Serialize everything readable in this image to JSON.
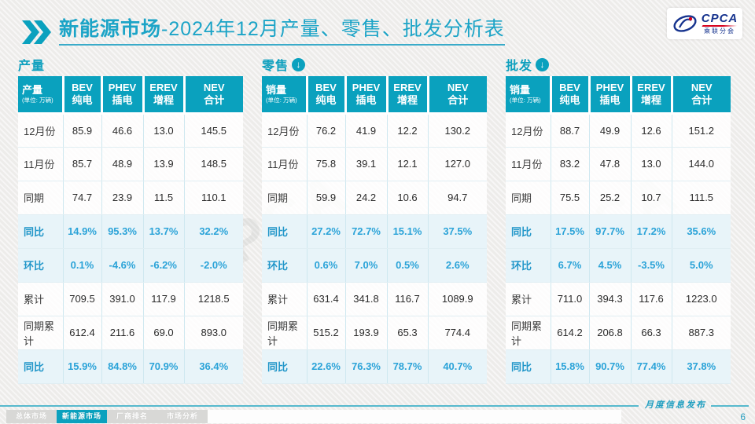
{
  "header": {
    "title_highlight": "新能源市场",
    "title_rest": "-2024年12月产量、零售、批发分析表",
    "logo": {
      "name": "CPCA",
      "subtitle": "乘联分会"
    }
  },
  "tables": [
    {
      "section_title": "产量",
      "has_arrow": false,
      "corner_label": "产量",
      "corner_unit": "(单位: 万辆)",
      "columns": [
        {
          "en": "BEV",
          "cn": "纯电"
        },
        {
          "en": "PHEV",
          "cn": "插电"
        },
        {
          "en": "EREV",
          "cn": "增程"
        },
        {
          "en": "NEV",
          "cn": "合计"
        }
      ],
      "rows": [
        {
          "label": "12月份",
          "type": "data",
          "values": [
            "85.9",
            "46.6",
            "13.0",
            "145.5"
          ]
        },
        {
          "label": "11月份",
          "type": "data",
          "values": [
            "85.7",
            "48.9",
            "13.9",
            "148.5"
          ]
        },
        {
          "label": "同期",
          "type": "data",
          "values": [
            "74.7",
            "23.9",
            "11.5",
            "110.1"
          ]
        },
        {
          "label": "同比",
          "type": "percent",
          "values": [
            "14.9%",
            "95.3%",
            "13.7%",
            "32.2%"
          ]
        },
        {
          "label": "环比",
          "type": "percent",
          "values": [
            "0.1%",
            "-4.6%",
            "-6.2%",
            "-2.0%"
          ]
        },
        {
          "label": "累计",
          "type": "data",
          "values": [
            "709.5",
            "391.0",
            "117.9",
            "1218.5"
          ]
        },
        {
          "label": "同期累计",
          "type": "data",
          "values": [
            "612.4",
            "211.6",
            "69.0",
            "893.0"
          ]
        },
        {
          "label": "同比",
          "type": "percent",
          "values": [
            "15.9%",
            "84.8%",
            "70.9%",
            "36.4%"
          ]
        }
      ]
    },
    {
      "section_title": "零售",
      "has_arrow": true,
      "arrow_glyph": "↓",
      "corner_label": "销量",
      "corner_unit": "(单位: 万辆)",
      "columns": [
        {
          "en": "BEV",
          "cn": "纯电"
        },
        {
          "en": "PHEV",
          "cn": "插电"
        },
        {
          "en": "EREV",
          "cn": "增程"
        },
        {
          "en": "NEV",
          "cn": "合计"
        }
      ],
      "rows": [
        {
          "label": "12月份",
          "type": "data",
          "values": [
            "76.2",
            "41.9",
            "12.2",
            "130.2"
          ]
        },
        {
          "label": "11月份",
          "type": "data",
          "values": [
            "75.8",
            "39.1",
            "12.1",
            "127.0"
          ]
        },
        {
          "label": "同期",
          "type": "data",
          "values": [
            "59.9",
            "24.2",
            "10.6",
            "94.7"
          ]
        },
        {
          "label": "同比",
          "type": "percent",
          "values": [
            "27.2%",
            "72.7%",
            "15.1%",
            "37.5%"
          ]
        },
        {
          "label": "环比",
          "type": "percent",
          "values": [
            "0.6%",
            "7.0%",
            "0.5%",
            "2.6%"
          ]
        },
        {
          "label": "累计",
          "type": "data",
          "values": [
            "631.4",
            "341.8",
            "116.7",
            "1089.9"
          ]
        },
        {
          "label": "同期累计",
          "type": "data",
          "values": [
            "515.2",
            "193.9",
            "65.3",
            "774.4"
          ]
        },
        {
          "label": "同比",
          "type": "percent",
          "values": [
            "22.6%",
            "76.3%",
            "78.7%",
            "40.7%"
          ]
        }
      ]
    },
    {
      "section_title": "批发",
      "has_arrow": true,
      "arrow_glyph": "↓",
      "corner_label": "销量",
      "corner_unit": "(单位: 万辆)",
      "columns": [
        {
          "en": "BEV",
          "cn": "纯电"
        },
        {
          "en": "PHEV",
          "cn": "插电"
        },
        {
          "en": "EREV",
          "cn": "增程"
        },
        {
          "en": "NEV",
          "cn": "合计"
        }
      ],
      "rows": [
        {
          "label": "12月份",
          "type": "data",
          "values": [
            "88.7",
            "49.9",
            "12.6",
            "151.2"
          ]
        },
        {
          "label": "11月份",
          "type": "data",
          "values": [
            "83.2",
            "47.8",
            "13.0",
            "144.0"
          ]
        },
        {
          "label": "同期",
          "type": "data",
          "values": [
            "75.5",
            "25.2",
            "10.7",
            "111.5"
          ]
        },
        {
          "label": "同比",
          "type": "percent",
          "values": [
            "17.5%",
            "97.7%",
            "17.2%",
            "35.6%"
          ]
        },
        {
          "label": "环比",
          "type": "percent",
          "values": [
            "6.7%",
            "4.5%",
            "-3.5%",
            "5.0%"
          ]
        },
        {
          "label": "累计",
          "type": "data",
          "values": [
            "711.0",
            "394.3",
            "117.6",
            "1223.0"
          ]
        },
        {
          "label": "同期累计",
          "type": "data",
          "values": [
            "614.2",
            "206.8",
            "66.3",
            "887.3"
          ]
        },
        {
          "label": "同比",
          "type": "percent",
          "values": [
            "15.8%",
            "90.7%",
            "77.4%",
            "37.8%"
          ]
        }
      ]
    }
  ],
  "footer": {
    "tabs": [
      {
        "label": "总体市场",
        "active": false
      },
      {
        "label": "新能源市场",
        "active": true
      },
      {
        "label": "厂商排名",
        "active": false
      },
      {
        "label": "市场分析",
        "active": false
      }
    ],
    "caption": "月度信息发布",
    "page_number": "6"
  },
  "colors": {
    "accent_teal": "#0aa1be",
    "title_teal": "#1ca4c7",
    "percent_blue": "#2ba3d8",
    "row_highlight": "#e8f4f9",
    "logo_blue": "#16338e",
    "logo_red": "#d6001c"
  }
}
